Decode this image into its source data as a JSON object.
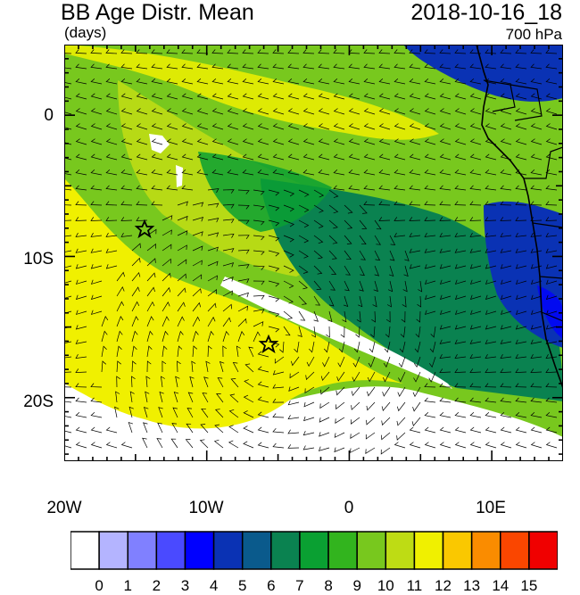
{
  "header": {
    "title": "BB Age Distr. Mean",
    "units": "(days)",
    "date": "2018-10-16_18",
    "level": "700 hPa"
  },
  "axes": {
    "x_ticks": [
      "20W",
      "10W",
      "0",
      "10E"
    ],
    "y_ticks": [
      "0",
      "10S",
      "20S"
    ],
    "lon_range": [
      -20,
      15
    ],
    "lat_range": [
      -24.5,
      5
    ]
  },
  "colorbar": {
    "labels": [
      "0",
      "1",
      "2",
      "3",
      "4",
      "5",
      "6",
      "7",
      "8",
      "9",
      "10",
      "11",
      "12",
      "13",
      "14",
      "15"
    ],
    "colors": [
      "#ffffff",
      "#b4b4ff",
      "#8080ff",
      "#4a4aff",
      "#0000ff",
      "#0a32b4",
      "#0a5a8c",
      "#0a8250",
      "#0aa032",
      "#32b41e",
      "#78c81e",
      "#bedc14",
      "#f0f000",
      "#fac800",
      "#fa8c00",
      "#fa4600",
      "#f00000"
    ]
  },
  "markers": [
    {
      "name": "star-marker",
      "lon": -14.5,
      "lat": -8
    },
    {
      "name": "star-marker",
      "lon": -5.7,
      "lat": -16
    }
  ]
}
